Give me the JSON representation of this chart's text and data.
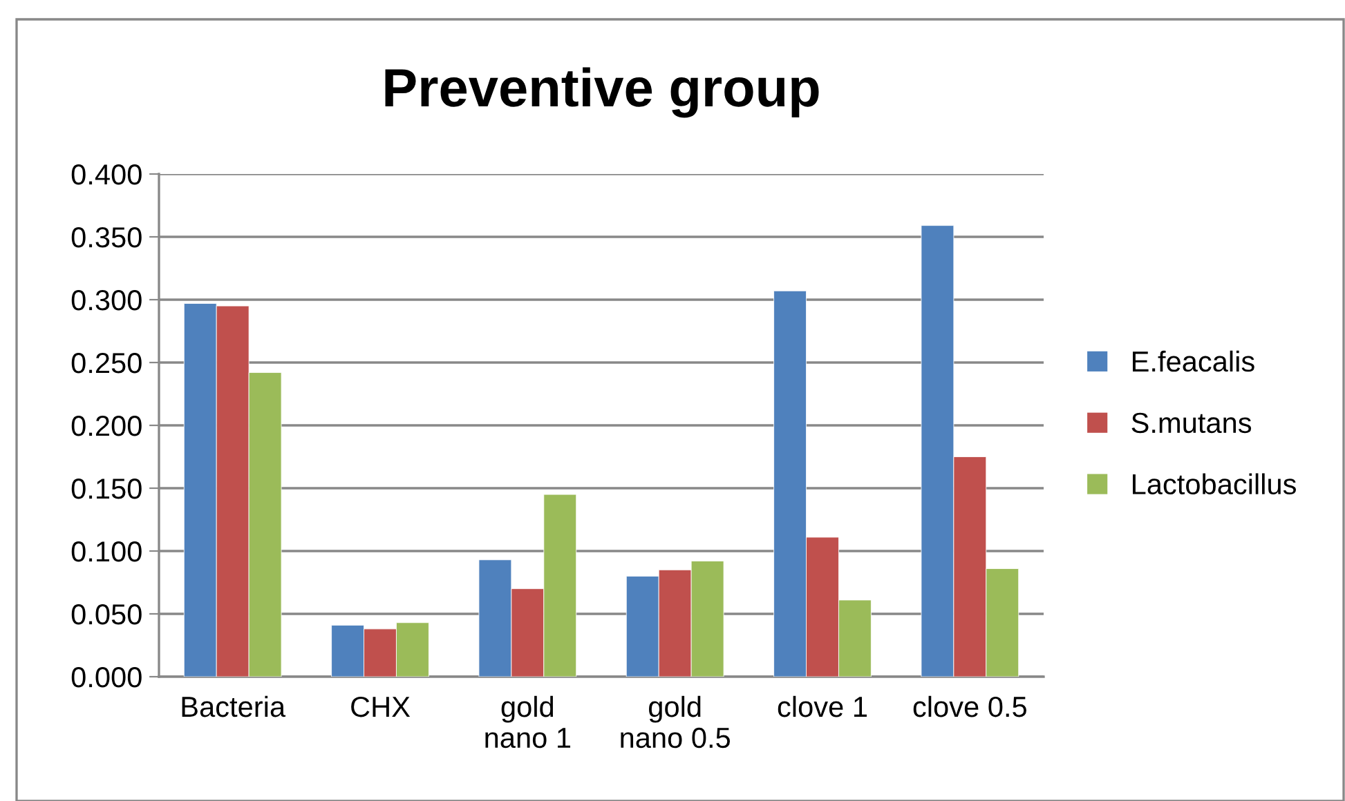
{
  "chart_data": {
    "type": "bar",
    "title": "Preventive group",
    "categories": [
      "Bacteria",
      "CHX",
      "gold\nnano 1",
      "gold\nnano 0.5",
      "clove 1",
      "clove 0.5"
    ],
    "series": [
      {
        "name": "E.feacalis",
        "color": "#4f81bd",
        "values": [
          0.297,
          0.041,
          0.093,
          0.08,
          0.307,
          0.359
        ]
      },
      {
        "name": "S.mutans",
        "color": "#c0504d",
        "values": [
          0.295,
          0.038,
          0.07,
          0.085,
          0.111,
          0.175
        ]
      },
      {
        "name": "Lactobacillus",
        "color": "#9bbb59",
        "values": [
          0.242,
          0.043,
          0.145,
          0.092,
          0.061,
          0.086
        ]
      }
    ],
    "ylim": [
      0,
      0.4
    ],
    "yticks": [
      {
        "value": 0,
        "label": "0.000"
      },
      {
        "value": 0.05,
        "label": "0.050"
      },
      {
        "value": 0.1,
        "label": "0.100"
      },
      {
        "value": 0.15,
        "label": "0.150"
      },
      {
        "value": 0.2,
        "label": "0.200"
      },
      {
        "value": 0.25,
        "label": "0.250"
      },
      {
        "value": 0.3,
        "label": "0.300"
      },
      {
        "value": 0.35,
        "label": "0.350"
      },
      {
        "value": 0.4,
        "label": "0.400"
      }
    ],
    "grid": "y",
    "legend": "right"
  }
}
